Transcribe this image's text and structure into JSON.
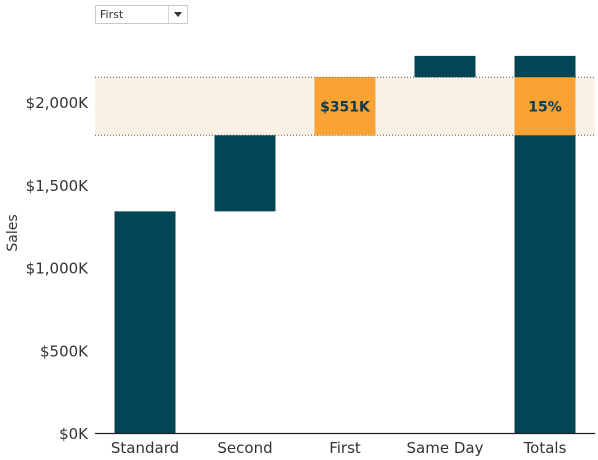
{
  "filter": {
    "selected": "First",
    "button_icon": "caret-down-icon"
  },
  "colors": {
    "bar": "#034554",
    "highlight": "#f8a334",
    "band": "#f8f1e4",
    "label": "#0b3b4c"
  },
  "chart_data": {
    "type": "bar",
    "subtype": "waterfall",
    "ylabel": "Sales",
    "xlabel": "",
    "title": "",
    "ylim": [
      0,
      2400
    ],
    "yticks": [
      0,
      500,
      1000,
      1500,
      2000
    ],
    "ytick_labels": [
      "$0K",
      "$500K",
      "$1,000K",
      "$1,500K",
      "$2,000K"
    ],
    "categories": [
      "Standard",
      "Second",
      "First",
      "Same Day",
      "Totals"
    ],
    "bars": [
      {
        "category": "Standard",
        "start": 0,
        "end": 1340
      },
      {
        "category": "Second",
        "start": 1340,
        "end": 1800
      },
      {
        "category": "First",
        "start": 1800,
        "end": 2151,
        "highlight": true
      },
      {
        "category": "Same Day",
        "start": 2151,
        "end": 2280
      },
      {
        "category": "Totals",
        "start": 0,
        "end": 2280
      }
    ],
    "highlight_band": {
      "from": 1800,
      "to": 2151
    },
    "annotations": [
      {
        "category": "First",
        "text": "$351K"
      },
      {
        "category": "Totals",
        "text": "15%"
      }
    ],
    "grid": false
  }
}
